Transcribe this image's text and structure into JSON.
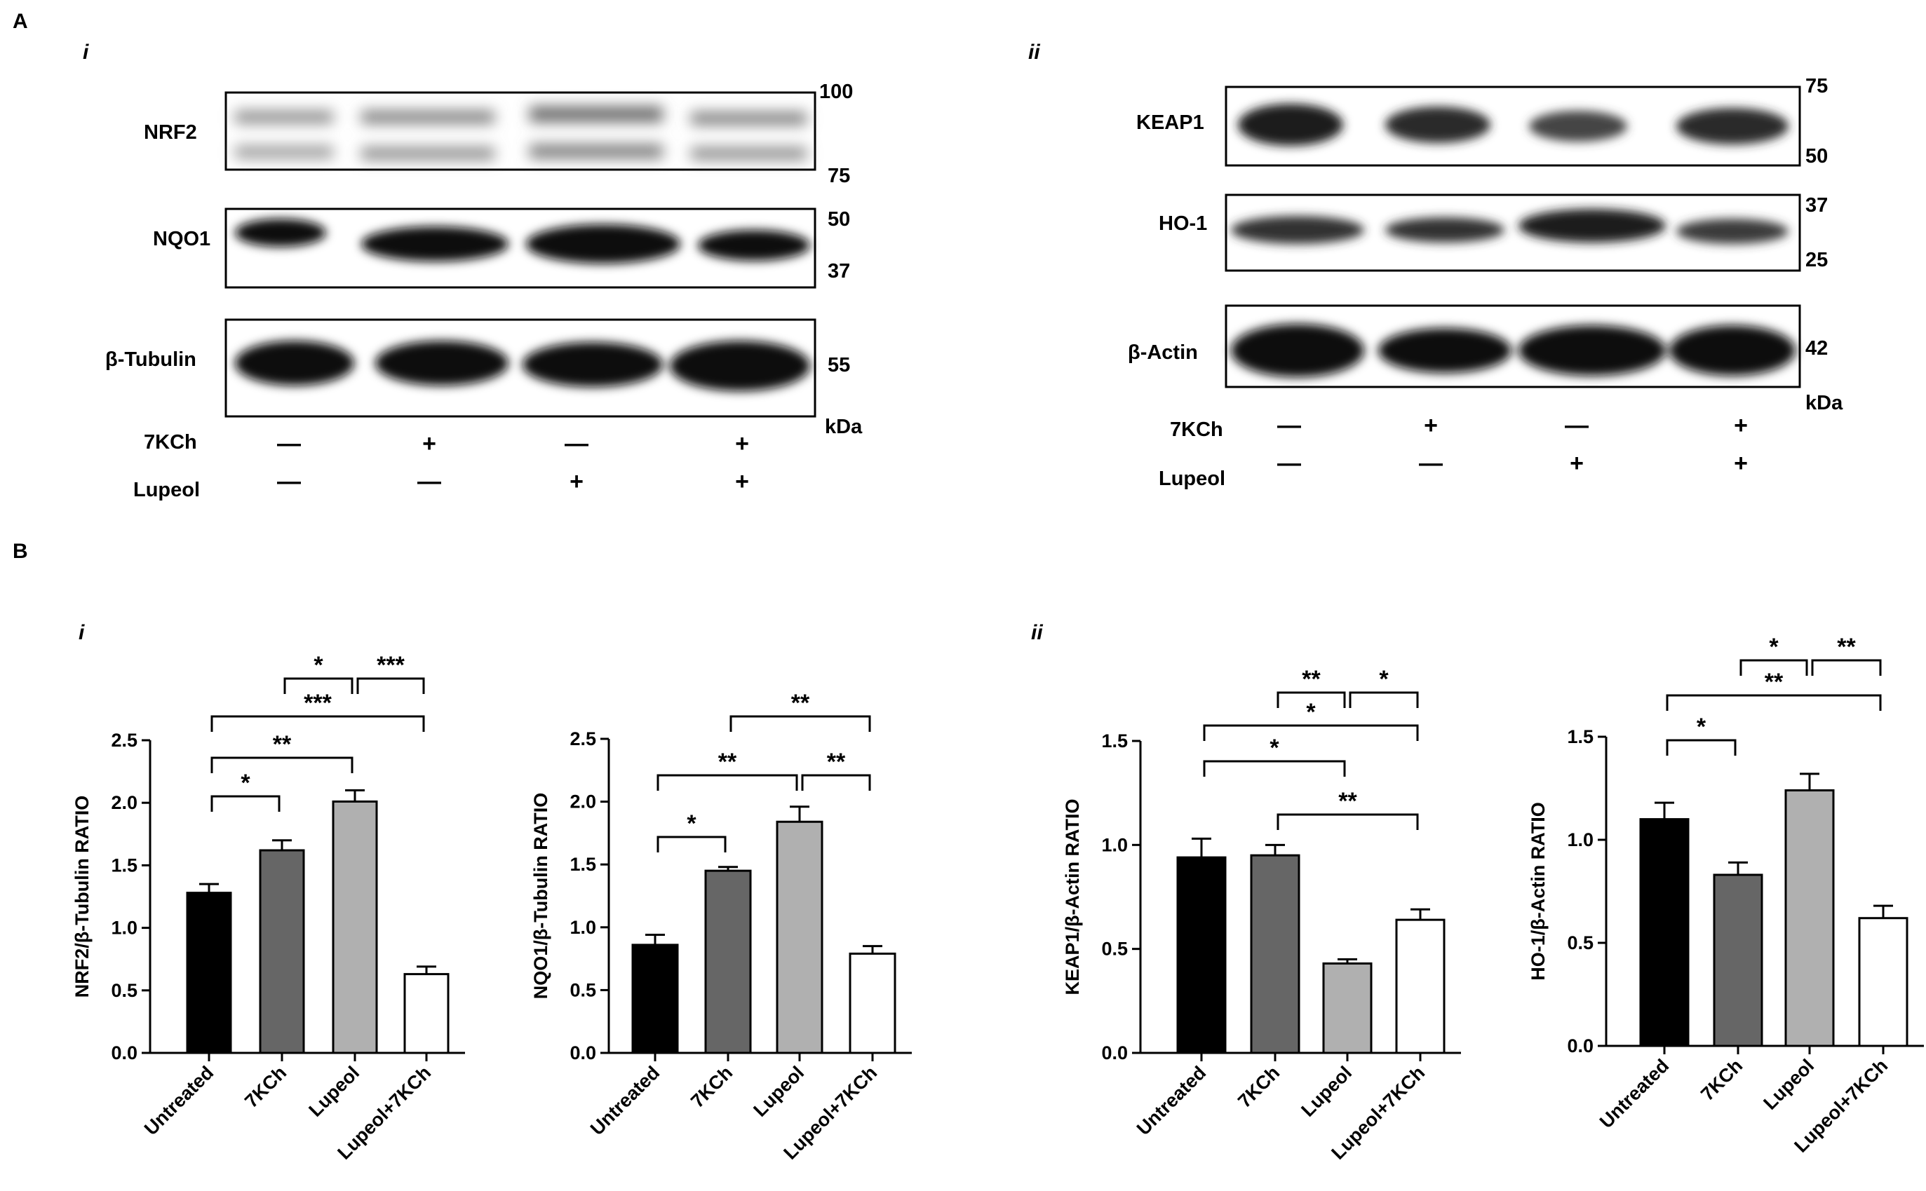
{
  "panel_labels": {
    "A": "A",
    "B": "B",
    "a_i": "i",
    "a_ii": "ii",
    "b_i": "i",
    "b_ii": "ii"
  },
  "blots": {
    "left": {
      "rows": [
        {
          "label": "NRF2",
          "mw": [
            "100",
            "75"
          ]
        },
        {
          "label": "NQO1",
          "mw": [
            "50",
            "37"
          ]
        },
        {
          "label": "β-Tubulin",
          "mw": [
            "55"
          ]
        }
      ],
      "unit": "kDa",
      "treatments": [
        {
          "label": "7KCh",
          "signs": [
            "—",
            "+",
            "—",
            "+"
          ]
        },
        {
          "label": "Lupeol",
          "signs": [
            "—",
            "—",
            "+",
            "+"
          ]
        }
      ]
    },
    "right": {
      "rows": [
        {
          "label": "KEAP1",
          "mw": [
            "75",
            "50"
          ]
        },
        {
          "label": "HO-1",
          "mw": [
            "37",
            "25"
          ]
        },
        {
          "label": "β-Actin",
          "mw": [
            "42"
          ]
        }
      ],
      "unit": "kDa",
      "treatments": [
        {
          "label": "7KCh",
          "signs": [
            "—",
            "+",
            "—",
            "+"
          ]
        },
        {
          "label": "Lupeol",
          "signs": [
            "—",
            "—",
            "+",
            "+"
          ]
        }
      ]
    }
  },
  "chart_data": [
    {
      "type": "bar",
      "ylabel": "NRF2/β-Tubulin RATIO",
      "categories": [
        "Untreated",
        "7KCh",
        "Lupeol",
        "Lupeol+7KCh"
      ],
      "values": [
        1.28,
        1.62,
        2.01,
        0.63
      ],
      "errors": [
        0.07,
        0.08,
        0.09,
        0.06
      ],
      "ylim": [
        0,
        2.5
      ],
      "yticks": [
        "0.0",
        "0.5",
        "1.0",
        "1.5",
        "2.0",
        "2.5"
      ],
      "bar_colors": [
        "#000000",
        "#666666",
        "#b0b0b0",
        "#ffffff"
      ],
      "significance": [
        {
          "from": 0,
          "to": 1,
          "label": "*"
        },
        {
          "from": 0,
          "to": 2,
          "label": "**"
        },
        {
          "from": 0,
          "to": 3,
          "label": "***"
        },
        {
          "from": 1,
          "to": 2,
          "label": "*"
        },
        {
          "from": 2,
          "to": 3,
          "label": "***"
        }
      ]
    },
    {
      "type": "bar",
      "ylabel": "NQO1/β-Tubulin RATIO",
      "categories": [
        "Untreated",
        "7KCh",
        "Lupeol",
        "Lupeol+7KCh"
      ],
      "values": [
        0.86,
        1.45,
        1.84,
        0.79
      ],
      "errors": [
        0.08,
        0.03,
        0.12,
        0.06
      ],
      "ylim": [
        0,
        2.5
      ],
      "yticks": [
        "0.0",
        "0.5",
        "1.0",
        "1.5",
        "2.0",
        "2.5"
      ],
      "bar_colors": [
        "#000000",
        "#666666",
        "#b0b0b0",
        "#ffffff"
      ],
      "significance": [
        {
          "from": 0,
          "to": 1,
          "label": "*"
        },
        {
          "from": 0,
          "to": 2,
          "label": "**"
        },
        {
          "from": 2,
          "to": 3,
          "label": "**"
        },
        {
          "from": 1,
          "to": 3,
          "label": "**"
        }
      ]
    },
    {
      "type": "bar",
      "ylabel": "KEAP1/β-Actin RATIO",
      "categories": [
        "Untreated",
        "7KCh",
        "Lupeol",
        "Lupeol+7KCh"
      ],
      "values": [
        0.94,
        0.95,
        0.43,
        0.64
      ],
      "errors": [
        0.09,
        0.05,
        0.02,
        0.05
      ],
      "ylim": [
        0,
        1.5
      ],
      "yticks": [
        "0.0",
        "0.5",
        "1.0",
        "1.5"
      ],
      "bar_colors": [
        "#000000",
        "#666666",
        "#b0b0b0",
        "#ffffff"
      ],
      "significance": [
        {
          "from": 1,
          "to": 3,
          "label": "**"
        },
        {
          "from": 0,
          "to": 2,
          "label": "*"
        },
        {
          "from": 0,
          "to": 3,
          "label": "*"
        },
        {
          "from": 1,
          "to": 2,
          "label": "**"
        },
        {
          "from": 2,
          "to": 3,
          "label": "*"
        }
      ]
    },
    {
      "type": "bar",
      "ylabel": "HO-1/β-Actin RATIO",
      "categories": [
        "Untreated",
        "7KCh",
        "Lupeol",
        "Lupeol+7KCh"
      ],
      "values": [
        1.1,
        0.83,
        1.24,
        0.62
      ],
      "errors": [
        0.08,
        0.06,
        0.08,
        0.06
      ],
      "ylim": [
        0,
        1.5
      ],
      "yticks": [
        "0.0",
        "0.5",
        "1.0",
        "1.5"
      ],
      "bar_colors": [
        "#000000",
        "#666666",
        "#b0b0b0",
        "#ffffff"
      ],
      "significance": [
        {
          "from": 0,
          "to": 1,
          "label": "*"
        },
        {
          "from": 0,
          "to": 3,
          "label": "**"
        },
        {
          "from": 1,
          "to": 2,
          "label": "*"
        },
        {
          "from": 2,
          "to": 3,
          "label": "**"
        }
      ]
    }
  ]
}
